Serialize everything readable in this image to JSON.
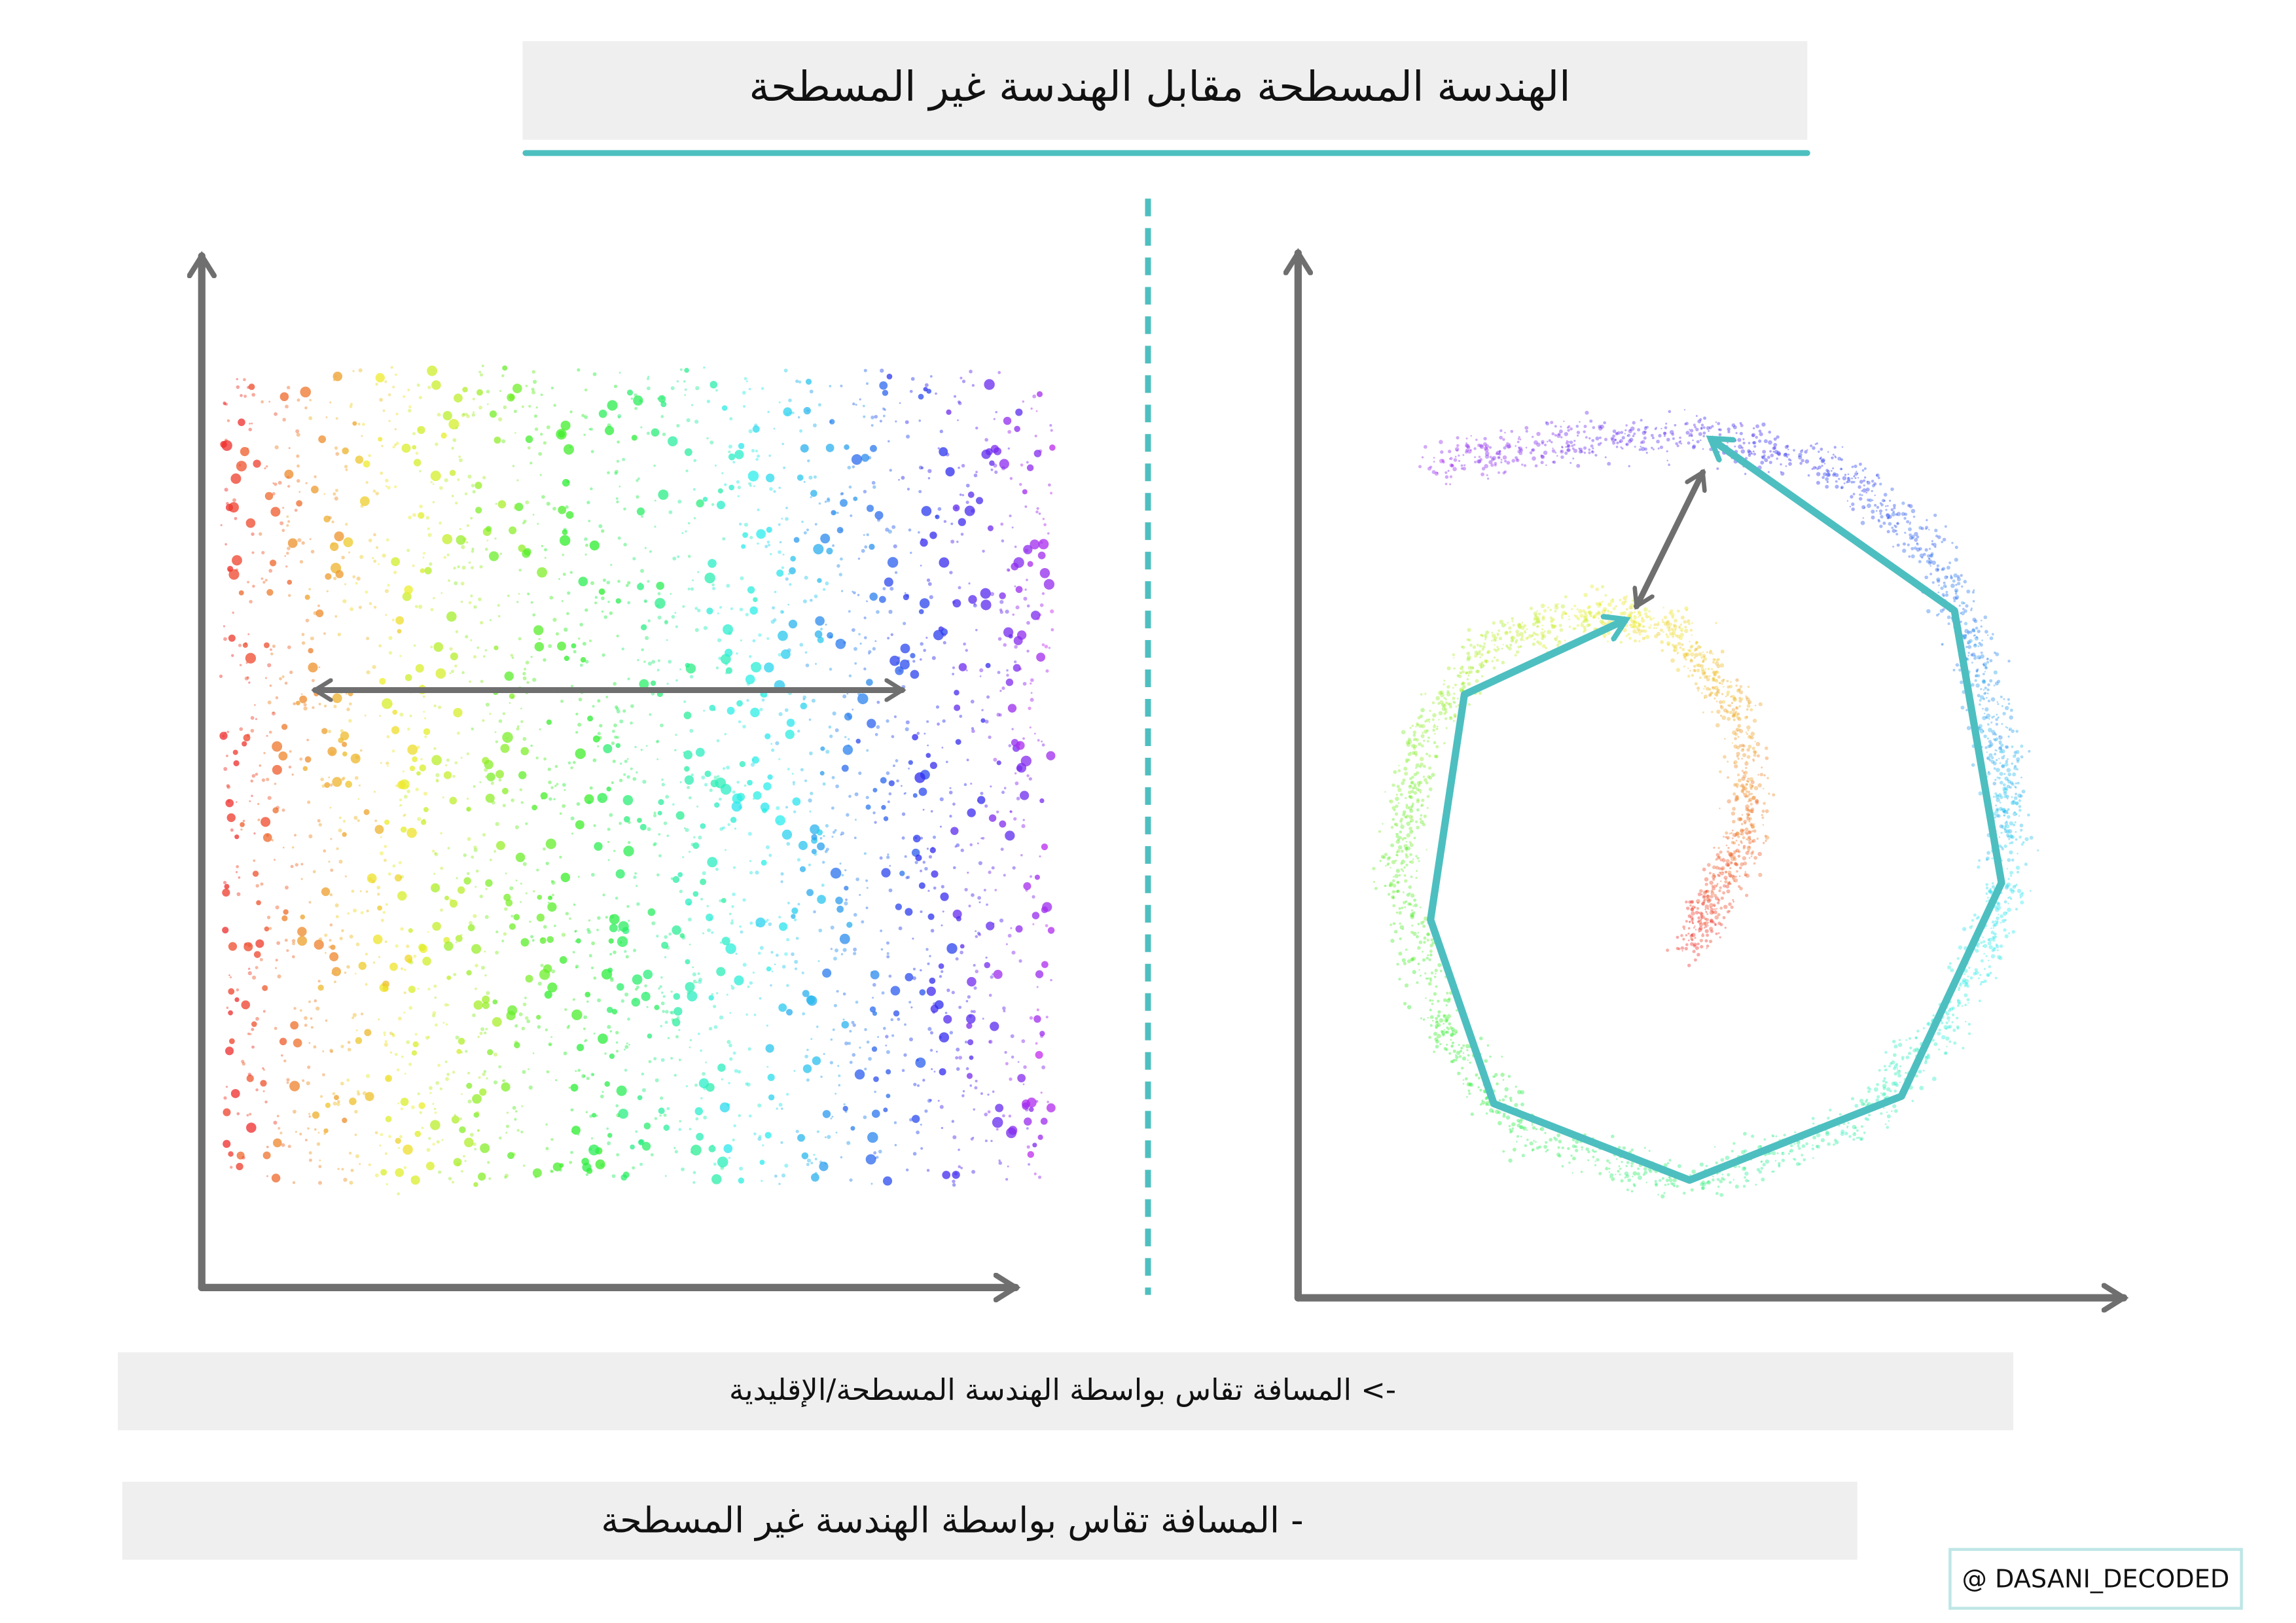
{
  "title": "الهندسة المسطحة مقابل الهندسة غير المسطحة",
  "captions": [
    "-> المسافة تقاس بواسطة الهندسة المسطحة/الإقليدية",
    "- المسافة تقاس بواسطة الهندسة غير المسطحة"
  ],
  "watermark": "@ DASANI_DECODED"
}
